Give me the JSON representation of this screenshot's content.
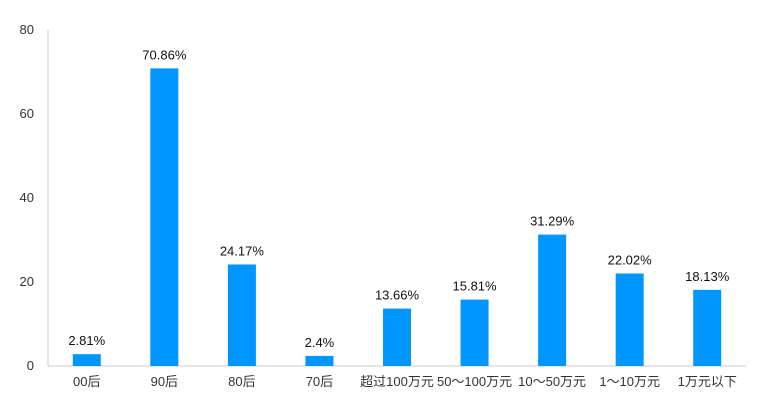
{
  "chart_data": {
    "type": "bar",
    "title": "",
    "xlabel": "",
    "ylabel": "",
    "categories": [
      "00后",
      "90后",
      "80后",
      "70后",
      "超过100万元",
      "50～100万元",
      "10～50万元",
      "1～10万元",
      "1万元以下"
    ],
    "values": [
      2.81,
      70.86,
      24.17,
      2.4,
      13.66,
      15.81,
      31.29,
      22.02,
      18.13
    ],
    "data_labels": [
      "2.81%",
      "70.86%",
      "24.17%",
      "2.4%",
      "13.66%",
      "15.81%",
      "31.29%",
      "22.02%",
      "18.13%"
    ],
    "ylim": [
      0,
      80
    ],
    "yticks": [
      0,
      20,
      40,
      60,
      80
    ],
    "grid": false,
    "bar_color": "#0096ff",
    "axis_color": "#c9ccd6"
  }
}
